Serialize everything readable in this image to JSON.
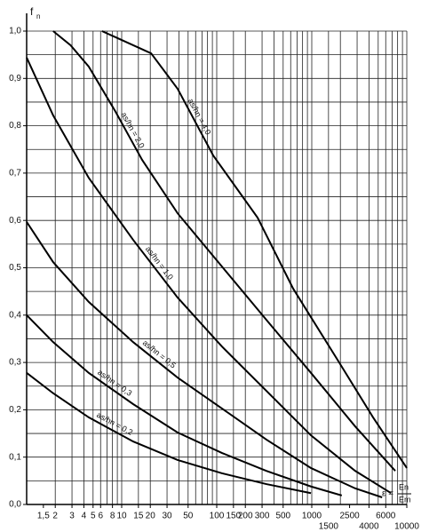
{
  "chart_data": {
    "type": "line",
    "y_label": {
      "main": "f",
      "sub": "n"
    },
    "x_label": {
      "lhs": "ε =",
      "numerator": "En",
      "denominator": "Em"
    },
    "xscale": "log",
    "xlim": [
      1,
      10000
    ],
    "ylim": [
      0,
      1
    ],
    "xticks": [
      {
        "value": 1.5,
        "label": "1,5"
      },
      2,
      3,
      4,
      5,
      6,
      8,
      10,
      15,
      20,
      30,
      50,
      100,
      150,
      200,
      300,
      500,
      1000,
      1500,
      2500,
      4000,
      6000,
      10000
    ],
    "yticks": [
      {
        "value": 0,
        "label": "0,0"
      },
      {
        "value": 0.1,
        "label": "0,1"
      },
      {
        "value": 0.2,
        "label": "0,2"
      },
      {
        "value": 0.3,
        "label": "0,3"
      },
      {
        "value": 0.4,
        "label": "0,4"
      },
      {
        "value": 0.5,
        "label": "0,5"
      },
      {
        "value": 0.6,
        "label": "0,6"
      },
      {
        "value": 0.7,
        "label": "0,7"
      },
      {
        "value": 0.8,
        "label": "0,8"
      },
      {
        "value": 0.9,
        "label": "0,9"
      },
      {
        "value": 1,
        "label": "1,0"
      }
    ],
    "xgrid": [
      1,
      2,
      3,
      4,
      5,
      6,
      7,
      8,
      9,
      10,
      15,
      20,
      30,
      40,
      50,
      60,
      70,
      80,
      90,
      100,
      150,
      200,
      300,
      400,
      500,
      600,
      700,
      800,
      900,
      1000,
      1500,
      2000,
      3000,
      4000,
      5000,
      6000,
      7000,
      8000,
      9000,
      10000
    ],
    "ygrid": [
      0,
      0.05,
      0.1,
      0.15,
      0.2,
      0.25,
      0.3,
      0.35,
      0.4,
      0.45,
      0.5,
      0.55,
      0.6,
      0.65,
      0.7,
      0.75,
      0.8,
      0.85,
      0.9,
      0.95,
      1
    ],
    "grid": true,
    "series": [
      {
        "name": "as/hn = 4,0",
        "color": "#000000",
        "x": [
          6.2,
          20.4,
          38.8,
          92,
          269,
          637,
          1860,
          4415,
          10000
        ],
        "values": [
          1.0,
          0.953,
          0.878,
          0.737,
          0.606,
          0.456,
          0.306,
          0.184,
          0.077
        ]
      },
      {
        "name": "as/hn = 2,0",
        "color": "#000000",
        "x": [
          1.9,
          2.9,
          4.5,
          8.6,
          16.4,
          38.8,
          113,
          333,
          980,
          2860,
          7560
        ],
        "values": [
          1.0,
          0.97,
          0.925,
          0.83,
          0.728,
          0.615,
          0.503,
          0.39,
          0.278,
          0.165,
          0.071
        ]
      },
      {
        "name": "as/hn = 1,0",
        "color": "#000000",
        "x": [
          1,
          1.9,
          4.5,
          13.2,
          38.8,
          113,
          333,
          980,
          2860,
          6820
        ],
        "values": [
          0.944,
          0.822,
          0.69,
          0.559,
          0.437,
          0.334,
          0.24,
          0.146,
          0.071,
          0.024
        ]
      },
      {
        "name": "as/hn = 0,5",
        "color": "#000000",
        "x": [
          1,
          1.9,
          4.5,
          13.2,
          38.8,
          113,
          333,
          980,
          2860,
          5500
        ],
        "values": [
          0.597,
          0.512,
          0.428,
          0.343,
          0.268,
          0.203,
          0.137,
          0.077,
          0.034,
          0.015
        ]
      },
      {
        "name": "as/hn = 0,3",
        "color": "#000000",
        "x": [
          1,
          1.9,
          4.5,
          13.2,
          38.8,
          113,
          333,
          980,
          2070
        ],
        "values": [
          0.4,
          0.343,
          0.278,
          0.212,
          0.152,
          0.109,
          0.071,
          0.038,
          0.019
        ]
      },
      {
        "name": "as/hn = 0,2",
        "color": "#000000",
        "x": [
          1,
          1.9,
          4.5,
          13.2,
          38.8,
          113,
          333,
          980
        ],
        "values": [
          0.278,
          0.235,
          0.184,
          0.133,
          0.094,
          0.066,
          0.043,
          0.024
        ]
      }
    ]
  }
}
